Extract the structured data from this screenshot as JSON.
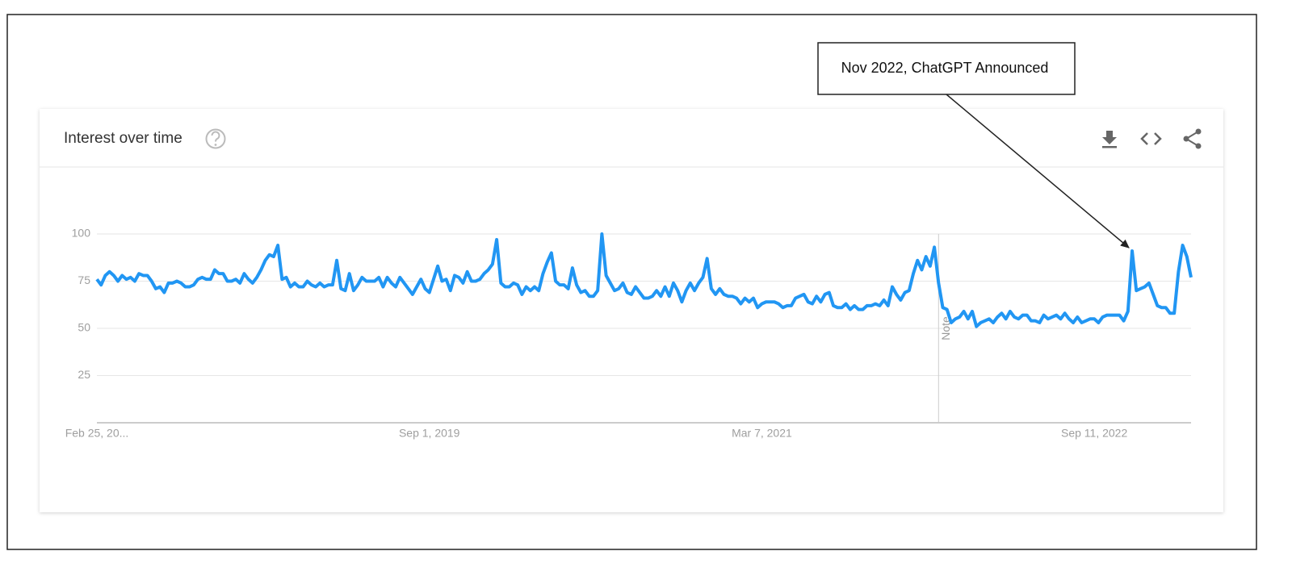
{
  "chart_data": {
    "type": "line",
    "title": "Interest over time",
    "annotation": "Nov 2022, ChatGPT Announced",
    "annotation_index": 246,
    "note": "Note",
    "note_index": 200,
    "color": "#2196f3",
    "categories": [
      "Feb 25, 20...",
      null,
      null,
      null,
      null,
      null,
      null,
      null,
      null,
      null,
      null,
      null,
      null,
      null,
      null,
      null,
      null,
      null,
      null,
      null,
      null,
      null,
      null,
      null,
      null,
      null,
      null,
      null,
      null,
      null,
      null,
      null,
      null,
      null,
      null,
      null,
      null,
      null,
      null,
      null,
      null,
      null,
      null,
      null,
      null,
      null,
      null,
      null,
      null,
      null,
      null,
      null,
      null,
      null,
      null,
      null,
      null,
      null,
      null,
      null,
      null,
      null,
      null,
      null,
      null,
      null,
      null,
      null,
      null,
      null,
      null,
      null,
      null,
      null,
      null,
      null,
      null,
      null,
      null,
      "Sep 1, 2019",
      null,
      null,
      null,
      null,
      null,
      null,
      null,
      null,
      null,
      null,
      null,
      null,
      null,
      null,
      null,
      null,
      null,
      null,
      null,
      null,
      null,
      null,
      null,
      null,
      null,
      null,
      null,
      null,
      null,
      null,
      null,
      null,
      null,
      null,
      null,
      null,
      null,
      null,
      null,
      null,
      null,
      null,
      null,
      null,
      null,
      null,
      null,
      null,
      null,
      null,
      null,
      null,
      null,
      null,
      null,
      null,
      null,
      null,
      null,
      null,
      null,
      null,
      null,
      null,
      null,
      null,
      null,
      null,
      null,
      null,
      null,
      null,
      null,
      null,
      null,
      null,
      null,
      null,
      "Mar 7, 2021",
      null,
      null,
      null,
      null,
      null,
      null,
      null,
      null,
      null,
      null,
      null,
      null,
      null,
      null,
      null,
      null,
      null,
      null,
      null,
      null,
      null,
      null,
      null,
      null,
      null,
      null,
      null,
      null,
      null,
      null,
      null,
      null,
      null,
      null,
      null,
      null,
      null,
      null,
      null,
      null,
      null,
      null,
      null,
      null,
      null,
      null,
      null,
      null,
      null,
      null,
      null,
      null,
      null,
      null,
      null,
      null,
      null,
      null,
      null,
      null,
      null,
      null,
      null,
      null,
      null,
      null,
      null,
      null,
      null,
      null,
      null,
      null,
      null,
      null,
      null,
      null,
      null,
      null,
      "Sep 11, 2022",
      null,
      null,
      null,
      null,
      null,
      null,
      null,
      null,
      null,
      null,
      null,
      null,
      null,
      null,
      null,
      null,
      null,
      null,
      null,
      null,
      null,
      null,
      null
    ],
    "values": [
      76,
      73,
      78,
      80,
      78,
      75,
      78,
      76,
      77,
      75,
      79,
      78,
      78,
      75,
      71,
      72,
      69,
      74,
      74,
      75,
      74,
      72,
      72,
      73,
      76,
      77,
      76,
      76,
      81,
      79,
      79,
      75,
      75,
      76,
      74,
      79,
      76,
      74,
      77,
      81,
      86,
      89,
      88,
      94,
      76,
      77,
      72,
      74,
      72,
      72,
      75,
      73,
      72,
      74,
      72,
      73,
      73,
      86,
      71,
      70,
      79,
      70,
      73,
      77,
      75,
      75,
      75,
      77,
      72,
      77,
      74,
      72,
      77,
      74,
      71,
      68,
      72,
      76,
      71,
      69,
      76,
      83,
      75,
      76,
      70,
      78,
      77,
      74,
      80,
      75,
      75,
      76,
      79,
      81,
      84,
      97,
      74,
      72,
      72,
      74,
      73,
      68,
      72,
      70,
      72,
      70,
      79,
      85,
      90,
      75,
      73,
      73,
      71,
      82,
      73,
      69,
      70,
      67,
      67,
      70,
      100,
      78,
      74,
      70,
      71,
      74,
      69,
      68,
      72,
      69,
      66,
      66,
      67,
      70,
      67,
      72,
      67,
      74,
      70,
      64,
      70,
      74,
      70,
      74,
      77,
      87,
      71,
      68,
      71,
      68,
      67,
      67,
      66,
      63,
      66,
      64,
      66,
      61,
      63,
      64,
      64,
      64,
      63,
      61,
      62,
      62,
      66,
      67,
      68,
      64,
      63,
      67,
      64,
      68,
      69,
      62,
      61,
      61,
      63,
      60,
      62,
      60,
      60,
      62,
      62,
      63,
      62,
      65,
      62,
      72,
      68,
      65,
      69,
      70,
      79,
      86,
      81,
      88,
      83,
      93,
      74,
      61,
      60,
      53,
      55,
      56,
      59,
      55,
      59,
      51,
      53,
      54,
      55,
      53,
      56,
      58,
      55,
      59,
      56,
      55,
      57,
      57,
      54,
      54,
      53,
      57,
      55,
      56,
      57,
      55,
      58,
      55,
      53,
      56,
      53,
      54,
      55,
      55,
      53,
      56,
      57,
      57,
      57,
      57,
      54,
      59,
      91,
      70,
      71,
      72,
      74,
      68,
      62,
      61,
      61,
      58,
      58,
      80,
      94,
      88,
      77
    ],
    "ylim": [
      0,
      100
    ],
    "yticks": [
      25,
      50,
      75,
      100
    ],
    "grid": true
  }
}
